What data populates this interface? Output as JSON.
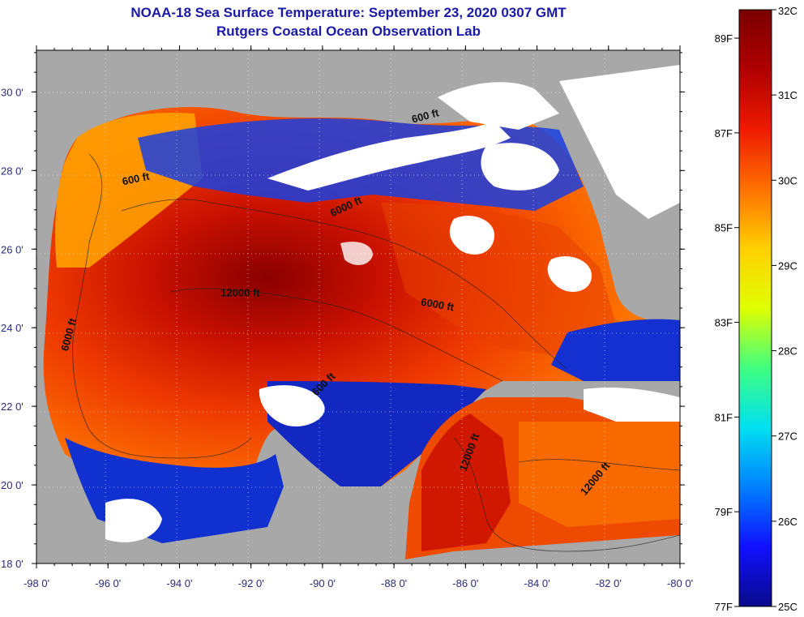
{
  "title": {
    "line1": "NOAA-18 Sea Surface Temperature:  September 23, 2020 0307 GMT",
    "line2": "Rutgers Coastal Ocean Observation Lab"
  },
  "map": {
    "longitude_labels": [
      "-98 0'",
      "-96 0'",
      "-94 0'",
      "-92 0'",
      "-90 0'",
      "-88 0'",
      "-86 0'",
      "-84 0'",
      "-82 0'",
      "-80 0'"
    ],
    "latitude_labels": [
      "30 0'",
      "28 0'",
      "26 0'",
      "24 0'",
      "22 0'",
      "20 0'",
      "18 0'"
    ],
    "contour_labels": [
      {
        "text": "600 ft",
        "lon": -95.2,
        "lat": 27.7
      },
      {
        "text": "6000 ft",
        "lon": -89.3,
        "lat": 27.0
      },
      {
        "text": "600 ft",
        "lon": -87.1,
        "lat": 29.3
      },
      {
        "text": "12000 ft",
        "lon": -92.3,
        "lat": 24.8
      },
      {
        "text": "6000 ft",
        "lon": -86.8,
        "lat": 24.5
      },
      {
        "text": "6000 ft",
        "lon": -97.0,
        "lat": 23.8
      },
      {
        "text": "600 ft",
        "lon": -89.9,
        "lat": 22.5
      },
      {
        "text": "12000 ft",
        "lon": -85.8,
        "lat": 20.8
      },
      {
        "text": "12000 ft",
        "lon": -82.3,
        "lat": 20.1
      }
    ],
    "colors": {
      "land": "#a8a8a8",
      "cloud": "#ffffff",
      "frame": "#000000",
      "label": "#2a2a7a"
    }
  },
  "colorbar": {
    "celsius_labels": [
      "32C",
      "31C",
      "30C",
      "29C",
      "28C",
      "27C",
      "26C",
      "25C"
    ],
    "fahrenheit_labels": [
      "89F",
      "87F",
      "85F",
      "83F",
      "81F",
      "79F",
      "77F"
    ],
    "range_c": [
      25,
      32
    ],
    "gradient": [
      "#0a0a8c",
      "#1010ff",
      "#0080ff",
      "#00e0f0",
      "#40ff80",
      "#e0ff00",
      "#ffd000",
      "#ff7000",
      "#ee1a00",
      "#b00000",
      "#7a0000"
    ]
  }
}
